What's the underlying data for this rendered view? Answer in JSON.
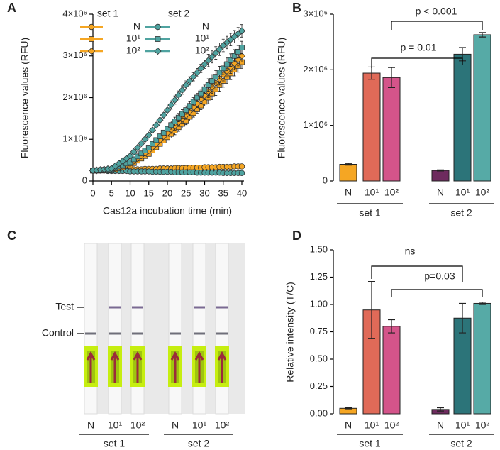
{
  "chart_data": [
    {
      "panel": "A",
      "type": "line",
      "xlabel": "Cas12a incubation time (min)",
      "ylabel": "Fluorescence values (RFU)",
      "x": [
        0,
        1,
        2,
        3,
        4,
        5,
        6,
        7,
        8,
        9,
        10,
        11,
        12,
        13,
        14,
        15,
        16,
        17,
        18,
        19,
        20,
        21,
        22,
        23,
        24,
        25,
        26,
        27,
        28,
        29,
        30,
        31,
        32,
        33,
        34,
        35,
        36,
        37,
        38,
        39,
        40
      ],
      "xlim": [
        0,
        40
      ],
      "xticks": [
        0,
        5,
        10,
        15,
        20,
        25,
        30,
        35,
        40
      ],
      "ylim": [
        0,
        4000000
      ],
      "yticks": [
        0,
        {
          "value": 1000000,
          "label": "1×10⁶"
        },
        {
          "value": 2000000,
          "label": "2×10⁶"
        },
        {
          "value": 3000000,
          "label": "3×10⁶"
        },
        {
          "value": 4000000,
          "label": "4×10⁶"
        }
      ],
      "legend_titles": [
        "set 1",
        "set 2"
      ],
      "series": [
        {
          "name": "N",
          "color": "#f5a623",
          "marker": "circle",
          "values": [
            250000,
            250000,
            260000,
            260000,
            260000,
            260000,
            270000,
            270000,
            270000,
            270000,
            280000,
            280000,
            280000,
            280000,
            290000,
            290000,
            290000,
            290000,
            300000,
            300000,
            300000,
            300000,
            310000,
            310000,
            310000,
            310000,
            320000,
            320000,
            320000,
            320000,
            330000,
            330000,
            330000,
            330000,
            340000,
            340000,
            340000,
            340000,
            350000,
            350000,
            350000
          ]
        },
        {
          "name": "10¹",
          "color": "#f5a623",
          "marker": "square",
          "values": [
            250000,
            250000,
            250000,
            260000,
            260000,
            260000,
            280000,
            310000,
            330000,
            360000,
            380000,
            430000,
            490000,
            540000,
            600000,
            650000,
            730000,
            810000,
            890000,
            970000,
            1050000,
            1130000,
            1210000,
            1290000,
            1370000,
            1450000,
            1540000,
            1630000,
            1720000,
            1810000,
            1900000,
            2000000,
            2100000,
            2200000,
            2300000,
            2400000,
            2490000,
            2580000,
            2670000,
            2760000,
            2850000
          ],
          "errors": [
            20000,
            20000,
            20000,
            20000,
            20000,
            20000,
            20000,
            20000,
            20000,
            20000,
            20000,
            50000,
            50000,
            50000,
            50000,
            50000,
            50000,
            50000,
            50000,
            50000,
            50000,
            100000,
            100000,
            100000,
            100000,
            100000,
            100000,
            100000,
            100000,
            100000,
            100000,
            150000,
            150000,
            150000,
            150000,
            150000,
            150000,
            150000,
            150000,
            150000,
            150000
          ]
        },
        {
          "name": "10²",
          "color": "#f5a623",
          "marker": "diamond",
          "values": [
            250000,
            250000,
            260000,
            260000,
            270000,
            270000,
            300000,
            330000,
            360000,
            390000,
            420000,
            480000,
            540000,
            610000,
            670000,
            730000,
            810000,
            900000,
            980000,
            1070000,
            1150000,
            1240000,
            1320000,
            1410000,
            1490000,
            1580000,
            1670000,
            1770000,
            1860000,
            1960000,
            2050000,
            2150000,
            2250000,
            2350000,
            2450000,
            2550000,
            2640000,
            2730000,
            2820000,
            2910000,
            3000000
          ],
          "errors": [
            20000,
            20000,
            20000,
            20000,
            20000,
            20000,
            20000,
            20000,
            20000,
            20000,
            20000,
            50000,
            50000,
            50000,
            50000,
            50000,
            50000,
            50000,
            50000,
            50000,
            50000,
            100000,
            100000,
            100000,
            100000,
            100000,
            100000,
            100000,
            100000,
            100000,
            100000,
            150000,
            150000,
            150000,
            150000,
            150000,
            150000,
            150000,
            150000,
            150000,
            150000
          ]
        },
        {
          "name": "N",
          "color": "#4fa3a0",
          "marker": "circle",
          "values": [
            250000,
            250000,
            250000,
            250000,
            240000,
            240000,
            240000,
            240000,
            240000,
            240000,
            230000,
            230000,
            230000,
            230000,
            230000,
            230000,
            220000,
            220000,
            220000,
            220000,
            220000,
            220000,
            210000,
            210000,
            210000,
            210000,
            210000,
            210000,
            200000,
            200000,
            200000,
            200000,
            200000,
            200000,
            200000,
            190000,
            190000,
            190000,
            190000,
            190000,
            190000
          ]
        },
        {
          "name": "10¹",
          "color": "#4fa3a0",
          "marker": "square",
          "values": [
            250000,
            260000,
            260000,
            270000,
            270000,
            280000,
            310000,
            350000,
            380000,
            420000,
            450000,
            520000,
            590000,
            660000,
            730000,
            800000,
            890000,
            980000,
            1070000,
            1160000,
            1250000,
            1340000,
            1430000,
            1520000,
            1610000,
            1700000,
            1800000,
            1900000,
            2000000,
            2100000,
            2200000,
            2300000,
            2400000,
            2500000,
            2600000,
            2700000,
            2800000,
            2900000,
            3000000,
            3100000,
            3200000
          ],
          "errors": [
            20000,
            20000,
            20000,
            20000,
            20000,
            20000,
            20000,
            20000,
            20000,
            20000,
            20000,
            50000,
            50000,
            50000,
            50000,
            50000,
            50000,
            50000,
            50000,
            50000,
            50000,
            100000,
            100000,
            100000,
            100000,
            100000,
            100000,
            100000,
            100000,
            100000,
            100000,
            150000,
            150000,
            150000,
            150000,
            150000,
            150000,
            150000,
            150000,
            150000,
            150000
          ]
        },
        {
          "name": "10²",
          "color": "#4fa3a0",
          "marker": "diamond",
          "values": [
            250000,
            260000,
            270000,
            280000,
            290000,
            300000,
            360000,
            420000,
            480000,
            540000,
            600000,
            700000,
            800000,
            900000,
            1000000,
            1100000,
            1220000,
            1340000,
            1460000,
            1580000,
            1700000,
            1820000,
            1940000,
            2060000,
            2180000,
            2300000,
            2400000,
            2500000,
            2600000,
            2700000,
            2800000,
            2890000,
            2980000,
            3070000,
            3160000,
            3250000,
            3320000,
            3390000,
            3460000,
            3530000,
            3600000
          ],
          "errors": [
            20000,
            20000,
            20000,
            20000,
            20000,
            20000,
            20000,
            20000,
            20000,
            20000,
            20000,
            50000,
            50000,
            50000,
            50000,
            50000,
            50000,
            50000,
            50000,
            50000,
            50000,
            100000,
            100000,
            100000,
            100000,
            100000,
            100000,
            100000,
            100000,
            100000,
            100000,
            150000,
            150000,
            150000,
            150000,
            150000,
            150000,
            150000,
            150000,
            150000,
            150000
          ]
        }
      ]
    },
    {
      "panel": "B",
      "type": "bar",
      "ylabel": "Fluorescence values (RFU)",
      "categories": [
        "N",
        "10¹",
        "10²",
        "N",
        "10¹",
        "10²"
      ],
      "groups": [
        "set 1",
        "set 2"
      ],
      "values": [
        300000,
        1940000,
        1860000,
        190000,
        2280000,
        2630000
      ],
      "errors": [
        15000,
        110000,
        180000,
        10000,
        120000,
        40000
      ],
      "colors": [
        "#f5a623",
        "#e06a58",
        "#d4548a",
        "#6e2b5e",
        "#2c7479",
        "#56aaa6"
      ],
      "ylim": [
        0,
        3000000
      ],
      "yticks": [
        0,
        {
          "value": 1000000,
          "label": "1×10⁶"
        },
        {
          "value": 2000000,
          "label": "2×10⁶"
        },
        {
          "value": 3000000,
          "label": "3×10⁶"
        }
      ],
      "annotations": [
        "p = 0.01",
        "p < 0.001"
      ]
    },
    {
      "panel": "C",
      "type": "strip",
      "row_labels": [
        "Test",
        "Control"
      ],
      "categories": [
        "N",
        "10¹",
        "10²",
        "N",
        "10¹",
        "10²"
      ],
      "groups": [
        "set 1",
        "set 2"
      ]
    },
    {
      "panel": "D",
      "type": "bar",
      "ylabel": "Relative intensity (T/C)",
      "categories": [
        "N",
        "10¹",
        "10²",
        "N",
        "10¹",
        "10²"
      ],
      "groups": [
        "set 1",
        "set 2"
      ],
      "values": [
        0.05,
        0.95,
        0.8,
        0.04,
        0.875,
        1.01
      ],
      "errors": [
        0.005,
        0.26,
        0.06,
        0.015,
        0.135,
        0.01
      ],
      "colors": [
        "#f5a623",
        "#e06a58",
        "#d4548a",
        "#6e2b5e",
        "#2c7479",
        "#56aaa6"
      ],
      "ylim": [
        0,
        1.5
      ],
      "yticks": [
        {
          "value": 0,
          "label": "0.00"
        },
        {
          "value": 0.25,
          "label": "0.25"
        },
        {
          "value": 0.5,
          "label": "0.50"
        },
        {
          "value": 0.75,
          "label": "0.75"
        },
        {
          "value": 1,
          "label": "1.00"
        },
        {
          "value": 1.25,
          "label": "1.25"
        },
        {
          "value": 1.5,
          "label": "1.50"
        }
      ],
      "annotations": [
        "ns",
        "p=0.03"
      ]
    }
  ]
}
